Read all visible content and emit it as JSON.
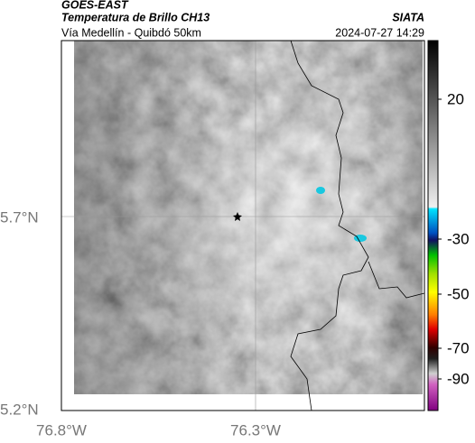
{
  "header": {
    "title": "GOES-EAST",
    "subtitle": "Temperatura de Brillo CH13",
    "source": "SIATA",
    "region": "Vía Medellín - Quibdó 50km",
    "timestamp": "2024-07-27 14:29"
  },
  "map": {
    "y_labels": [
      "5.7°N",
      "5.2°N"
    ],
    "x_labels": [
      "76.8°W",
      "76.3°W"
    ]
  },
  "colorbar": {
    "ticks": [
      20,
      -30,
      -50,
      -70,
      -90
    ]
  }
}
